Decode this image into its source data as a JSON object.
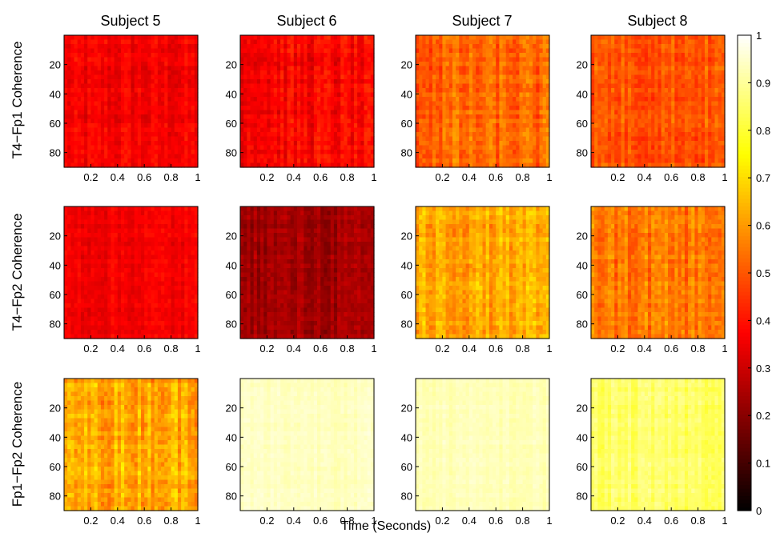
{
  "chart_data": {
    "type": "heatmap",
    "colormap": "hot",
    "xlabel": "Time (Seconds)",
    "xlim": [
      0,
      1
    ],
    "ylim": [
      0,
      90
    ],
    "x_ticks": [
      "0.2",
      "0.4",
      "0.6",
      "0.8",
      "1"
    ],
    "y_ticks": [
      "20",
      "40",
      "60",
      "80"
    ],
    "columns": [
      "Subject 5",
      "Subject 6",
      "Subject 7",
      "Subject 8"
    ],
    "rows": [
      "T4−Fp1 Coherence",
      "T4−Fp2 Coherence",
      "Fp1−Fp2 Coherence"
    ],
    "colorbar": {
      "range": [
        0,
        1
      ],
      "ticks": [
        "0",
        "0.1",
        "0.2",
        "0.3",
        "0.4",
        "0.5",
        "0.6",
        "0.7",
        "0.8",
        "0.9",
        "1"
      ]
    },
    "panels": [
      {
        "row": 0,
        "col": 0,
        "mean_coherence": 0.36,
        "spread": 0.05
      },
      {
        "row": 0,
        "col": 1,
        "mean_coherence": 0.37,
        "spread": 0.06
      },
      {
        "row": 0,
        "col": 2,
        "mean_coherence": 0.52,
        "spread": 0.07
      },
      {
        "row": 0,
        "col": 3,
        "mean_coherence": 0.5,
        "spread": 0.06
      },
      {
        "row": 1,
        "col": 0,
        "mean_coherence": 0.36,
        "spread": 0.04
      },
      {
        "row": 1,
        "col": 1,
        "mean_coherence": 0.24,
        "spread": 0.05
      },
      {
        "row": 1,
        "col": 2,
        "mean_coherence": 0.62,
        "spread": 0.07
      },
      {
        "row": 1,
        "col": 3,
        "mean_coherence": 0.55,
        "spread": 0.07
      },
      {
        "row": 2,
        "col": 0,
        "mean_coherence": 0.63,
        "spread": 0.08
      },
      {
        "row": 2,
        "col": 1,
        "mean_coherence": 0.94,
        "spread": 0.02
      },
      {
        "row": 2,
        "col": 2,
        "mean_coherence": 0.93,
        "spread": 0.02
      },
      {
        "row": 2,
        "col": 3,
        "mean_coherence": 0.85,
        "spread": 0.04
      }
    ]
  }
}
